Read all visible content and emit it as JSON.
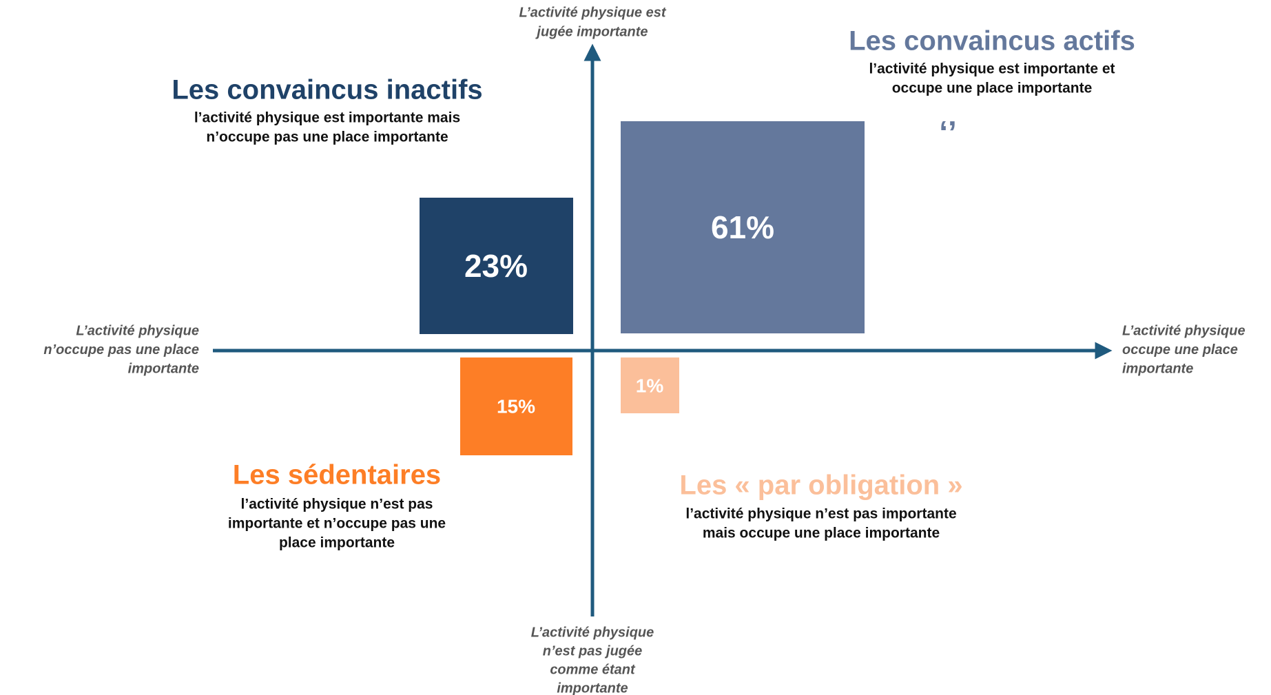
{
  "axes": {
    "top": [
      "L’activité physique est",
      "jugée importante"
    ],
    "bottom": [
      "L’activité physique",
      "n’est pas jugée",
      "comme étant",
      "importante"
    ],
    "left": [
      "L’activité physique",
      "n’occupe pas une place",
      "importante"
    ],
    "right": [
      "L’activité physique",
      "occupe une place",
      "importante"
    ]
  },
  "quadrants": [
    {
      "title": "Les convaincus inactifs",
      "description": [
        "l’activité physique est importante mais",
        "n’occupe pas une place importante"
      ],
      "value": "23%"
    },
    {
      "title": "Les convaincus actifs",
      "description": [
        "l’activité physique est importante et",
        "occupe une place importante"
      ],
      "value": "61%",
      "quote": "‘’"
    },
    {
      "title": "Les sédentaires",
      "description": [
        "l’activité physique n’est pas",
        "importante et n’occupe pas une",
        "place importante"
      ],
      "value": "15%"
    },
    {
      "title": "Les « par obligation »",
      "description": [
        "l’activité physique n’est pas importante",
        "mais occupe une place importante"
      ],
      "value": "1%"
    }
  ]
}
